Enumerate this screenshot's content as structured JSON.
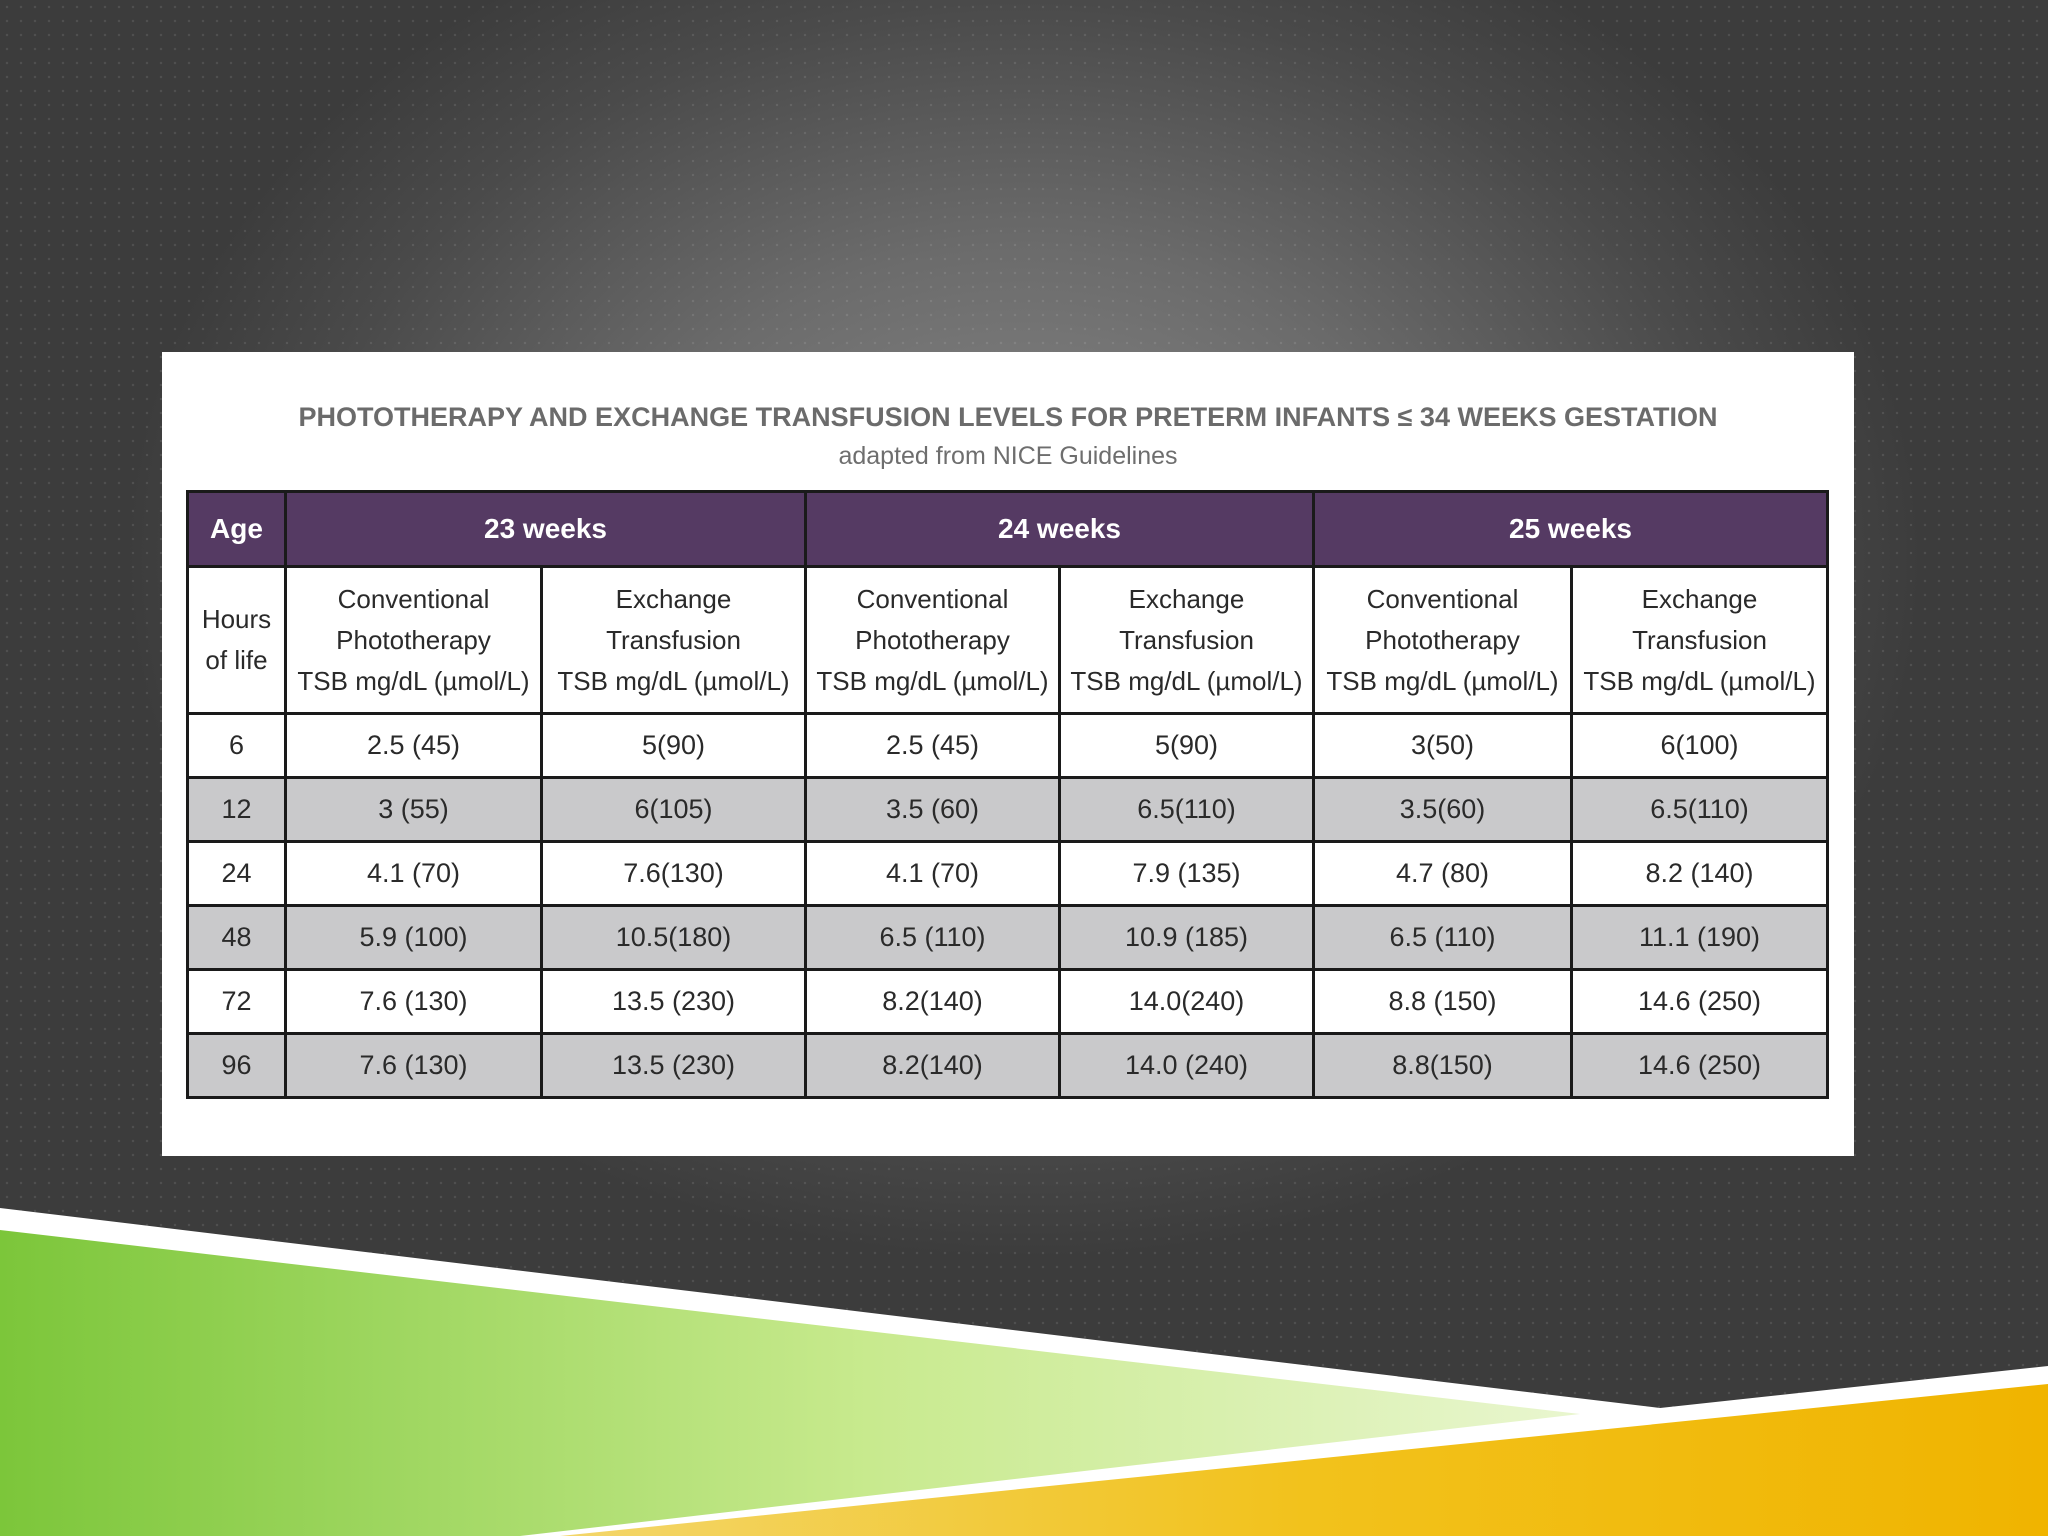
{
  "table": {
    "title": "PHOTOTHERAPY AND EXCHANGE TRANSFUSION LEVELS FOR PRETERM INFANTS ≤ 34 WEEKS GESTATION",
    "subtitle": "adapted from NICE Guidelines",
    "header": [
      "Age",
      "23 weeks",
      "24 weeks",
      "25 weeks"
    ],
    "subheader": {
      "age": [
        "Hours",
        "of life"
      ],
      "conventional": [
        "Conventional",
        "Phototherapy",
        "TSB mg/dL (µmol/L)"
      ],
      "exchange": [
        "Exchange",
        "Transfusion",
        "TSB mg/dL (µmol/L)"
      ]
    },
    "rows": [
      [
        "6",
        "2.5 (45)",
        "5(90)",
        "2.5 (45)",
        "5(90)",
        "3(50)",
        "6(100)"
      ],
      [
        "12",
        "3 (55)",
        "6(105)",
        "3.5 (60)",
        "6.5(110)",
        "3.5(60)",
        "6.5(110)"
      ],
      [
        "24",
        "4.1 (70)",
        "7.6(130)",
        "4.1 (70)",
        "7.9 (135)",
        "4.7 (80)",
        "8.2 (140)"
      ],
      [
        "48",
        "5.9 (100)",
        "10.5(180)",
        "6.5 (110)",
        "10.9 (185)",
        "6.5 (110)",
        "11.1 (190)"
      ],
      [
        "72",
        "7.6 (130)",
        "13.5 (230)",
        "8.2(140)",
        "14.0(240)",
        "8.8 (150)",
        "14.6 (250)"
      ],
      [
        "96",
        "7.6 (130)",
        "13.5 (230)",
        "8.2(140)",
        "14.0 (240)",
        "8.8(150)",
        "14.6 (250)"
      ]
    ]
  },
  "colors": {
    "header_bg": "#553a63",
    "shaded_row": "#c9c9cb",
    "green_band": "#7ec832",
    "gold_band": "#f0b800"
  }
}
